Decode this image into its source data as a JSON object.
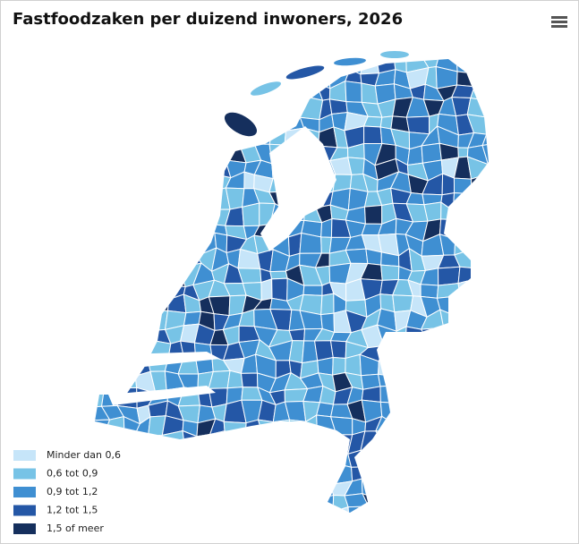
{
  "title": "Fastfoodzaken per duizend inwoners, 2026",
  "legend": [
    {
      "label": "Minder dan 0,6",
      "color": "#c6e5f9"
    },
    {
      "label": "0,6 tot 0,9",
      "color": "#77c3e6"
    },
    {
      "label": "0,9 tot 1,2",
      "color": "#3f8fd2"
    },
    {
      "label": "1,2 tot 1,5",
      "color": "#2457a6"
    },
    {
      "label": "1,5 of meer",
      "color": "#152f5d"
    }
  ]
}
